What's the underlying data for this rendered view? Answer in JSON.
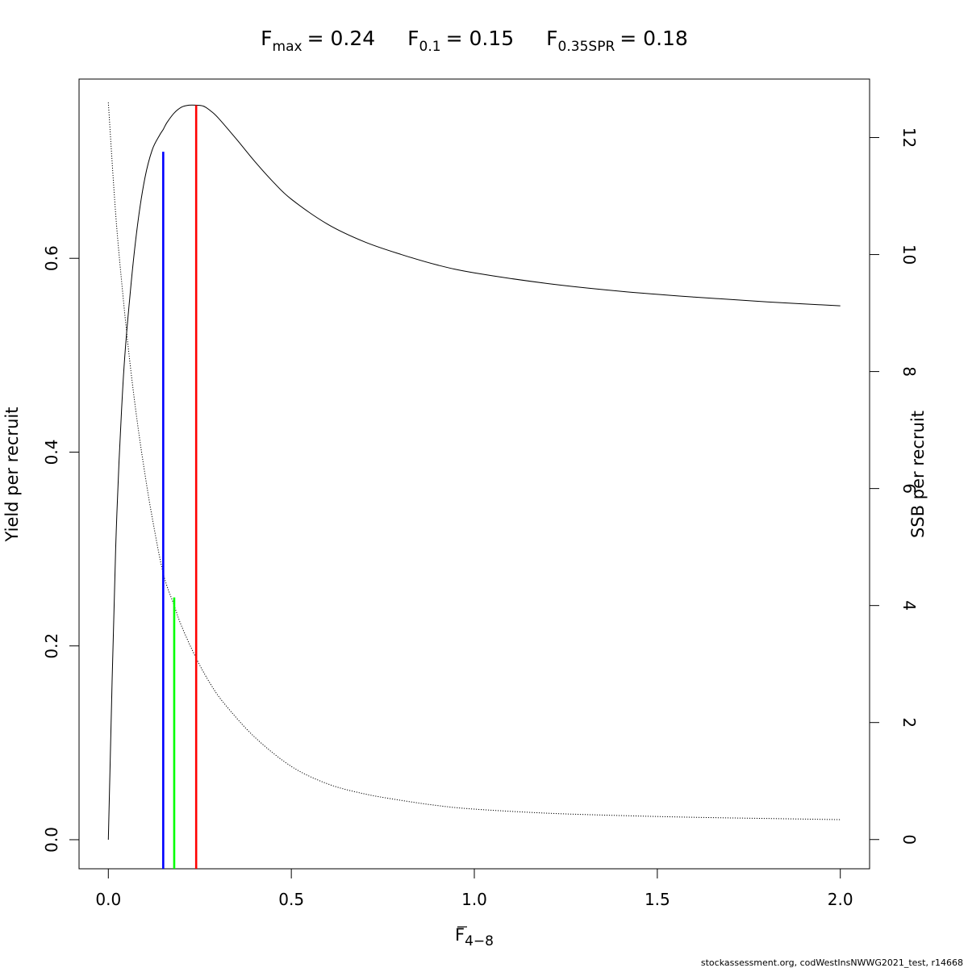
{
  "chart_data": {
    "type": "line",
    "title": {
      "fmax": {
        "base": "F",
        "sub": "max",
        "value": "= 0.24"
      },
      "f01": {
        "base": "F",
        "sub": "0.1",
        "value": "= 0.15"
      },
      "fspr": {
        "base": "F",
        "sub": "0.35SPR",
        "value": "= 0.18"
      }
    },
    "xlabel": {
      "base": "F",
      "sub": "4−8"
    },
    "ylabel_left": "Yield per recruit",
    "ylabel_right": "SSB per recruit",
    "xlim": [
      -0.08,
      2.08
    ],
    "ylim_left": [
      -0.03,
      0.785
    ],
    "ylim_right": [
      -0.5,
      13.0
    ],
    "x_ticks": [
      0.0,
      0.5,
      1.0,
      1.5,
      2.0
    ],
    "x_tick_labels": [
      "0.0",
      "0.5",
      "1.0",
      "1.5",
      "2.0"
    ],
    "y_left_ticks": [
      0.0,
      0.2,
      0.4,
      0.6
    ],
    "y_left_tick_labels": [
      "0.0",
      "0.2",
      "0.4",
      "0.6"
    ],
    "y_right_ticks": [
      0,
      2,
      4,
      6,
      8,
      10,
      12
    ],
    "y_right_tick_labels": [
      "0",
      "2",
      "4",
      "6",
      "8",
      "10",
      "12"
    ],
    "series": [
      {
        "name": "Yield per recruit",
        "axis": "left",
        "style": "solid",
        "color": "#000000",
        "x": [
          0.0,
          0.02,
          0.04,
          0.06,
          0.08,
          0.1,
          0.12,
          0.14,
          0.15,
          0.16,
          0.18,
          0.2,
          0.22,
          0.24,
          0.26,
          0.28,
          0.3,
          0.35,
          0.4,
          0.45,
          0.5,
          0.6,
          0.7,
          0.8,
          0.9,
          1.0,
          1.2,
          1.4,
          1.6,
          1.8,
          2.0
        ],
        "y": [
          0.0,
          0.3,
          0.47,
          0.565,
          0.635,
          0.683,
          0.712,
          0.727,
          0.733,
          0.74,
          0.75,
          0.756,
          0.758,
          0.758,
          0.757,
          0.752,
          0.745,
          0.723,
          0.7,
          0.679,
          0.661,
          0.635,
          0.617,
          0.604,
          0.593,
          0.585,
          0.574,
          0.566,
          0.56,
          0.555,
          0.551
        ]
      },
      {
        "name": "SSB per recruit",
        "axis": "right",
        "style": "dotted",
        "color": "#000000",
        "x": [
          0.0,
          0.02,
          0.04,
          0.06,
          0.08,
          0.1,
          0.12,
          0.15,
          0.18,
          0.2,
          0.24,
          0.28,
          0.32,
          0.4,
          0.5,
          0.6,
          0.7,
          0.8,
          0.9,
          1.0,
          1.2,
          1.4,
          1.6,
          1.8,
          2.0
        ],
        "y": [
          12.6,
          10.7,
          9.3,
          8.1,
          7.1,
          6.25,
          5.5,
          4.55,
          4.0,
          3.65,
          3.1,
          2.65,
          2.3,
          1.75,
          1.25,
          0.95,
          0.78,
          0.67,
          0.58,
          0.52,
          0.45,
          0.41,
          0.38,
          0.36,
          0.34
        ]
      }
    ],
    "reference_lines": [
      {
        "name": "F0.1",
        "x": 0.15,
        "y_top": 0.71,
        "color": "#0000ff"
      },
      {
        "name": "F0.35SPR",
        "x": 0.18,
        "y_top": 0.25,
        "color": "#00ff00"
      },
      {
        "name": "Fmax",
        "x": 0.24,
        "y_top": 0.758,
        "color": "#ff0000"
      }
    ],
    "grid": false,
    "legend": "none"
  },
  "footer": "stockassessment.org, codWestInsNWWG2021_test, r14668"
}
